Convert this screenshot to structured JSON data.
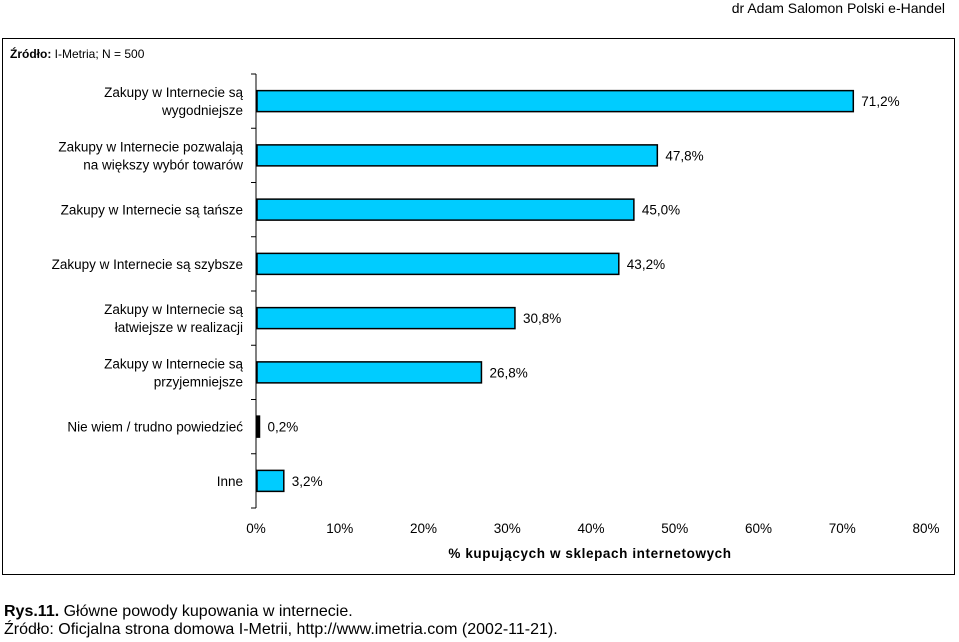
{
  "header": "dr Adam Salomon    Polski e-Handel",
  "source_top": {
    "label": "Źródło:",
    "text": " I-Metria; N = 500"
  },
  "caption": {
    "fig_label": "Rys.11.",
    "title": " Główne powody kupowania w internecie.",
    "source": "Źródło: Oficjalna strona domowa I-Metrii, http://www.imetria.com (2002-11-21)."
  },
  "chart_data": {
    "type": "bar",
    "orientation": "horizontal",
    "categories": [
      [
        "Zakupy w Internecie są",
        "wygodniejsze"
      ],
      [
        "Zakupy w Internecie pozwalają",
        "na większy wybór towarów"
      ],
      [
        "Zakupy w Internecie są tańsze"
      ],
      [
        "Zakupy w Internecie są szybsze"
      ],
      [
        "Zakupy w Internecie są",
        "łatwiejsze w realizacji"
      ],
      [
        "Zakupy w Internecie są",
        "przyjemniejsze"
      ],
      [
        "Nie wiem / trudno powiedzieć"
      ],
      [
        "Inne"
      ]
    ],
    "values": [
      71.2,
      47.8,
      45.0,
      43.2,
      30.8,
      26.8,
      0.2,
      3.2
    ],
    "value_labels": [
      "71,2%",
      "47,8%",
      "45,0%",
      "43,2%",
      "30,8%",
      "26,8%",
      "0,2%",
      "3,2%"
    ],
    "xlim": [
      0,
      80
    ],
    "xticks": [
      "0%",
      "10%",
      "20%",
      "30%",
      "40%",
      "50%",
      "60%",
      "70%",
      "80%"
    ],
    "xlabel": "% kupujących w sklepach internetowych",
    "ylabel": "",
    "title": "",
    "grid": false,
    "legend": "none",
    "colors": {
      "bar": "#00CCFF",
      "bar_border": "#000000"
    }
  }
}
